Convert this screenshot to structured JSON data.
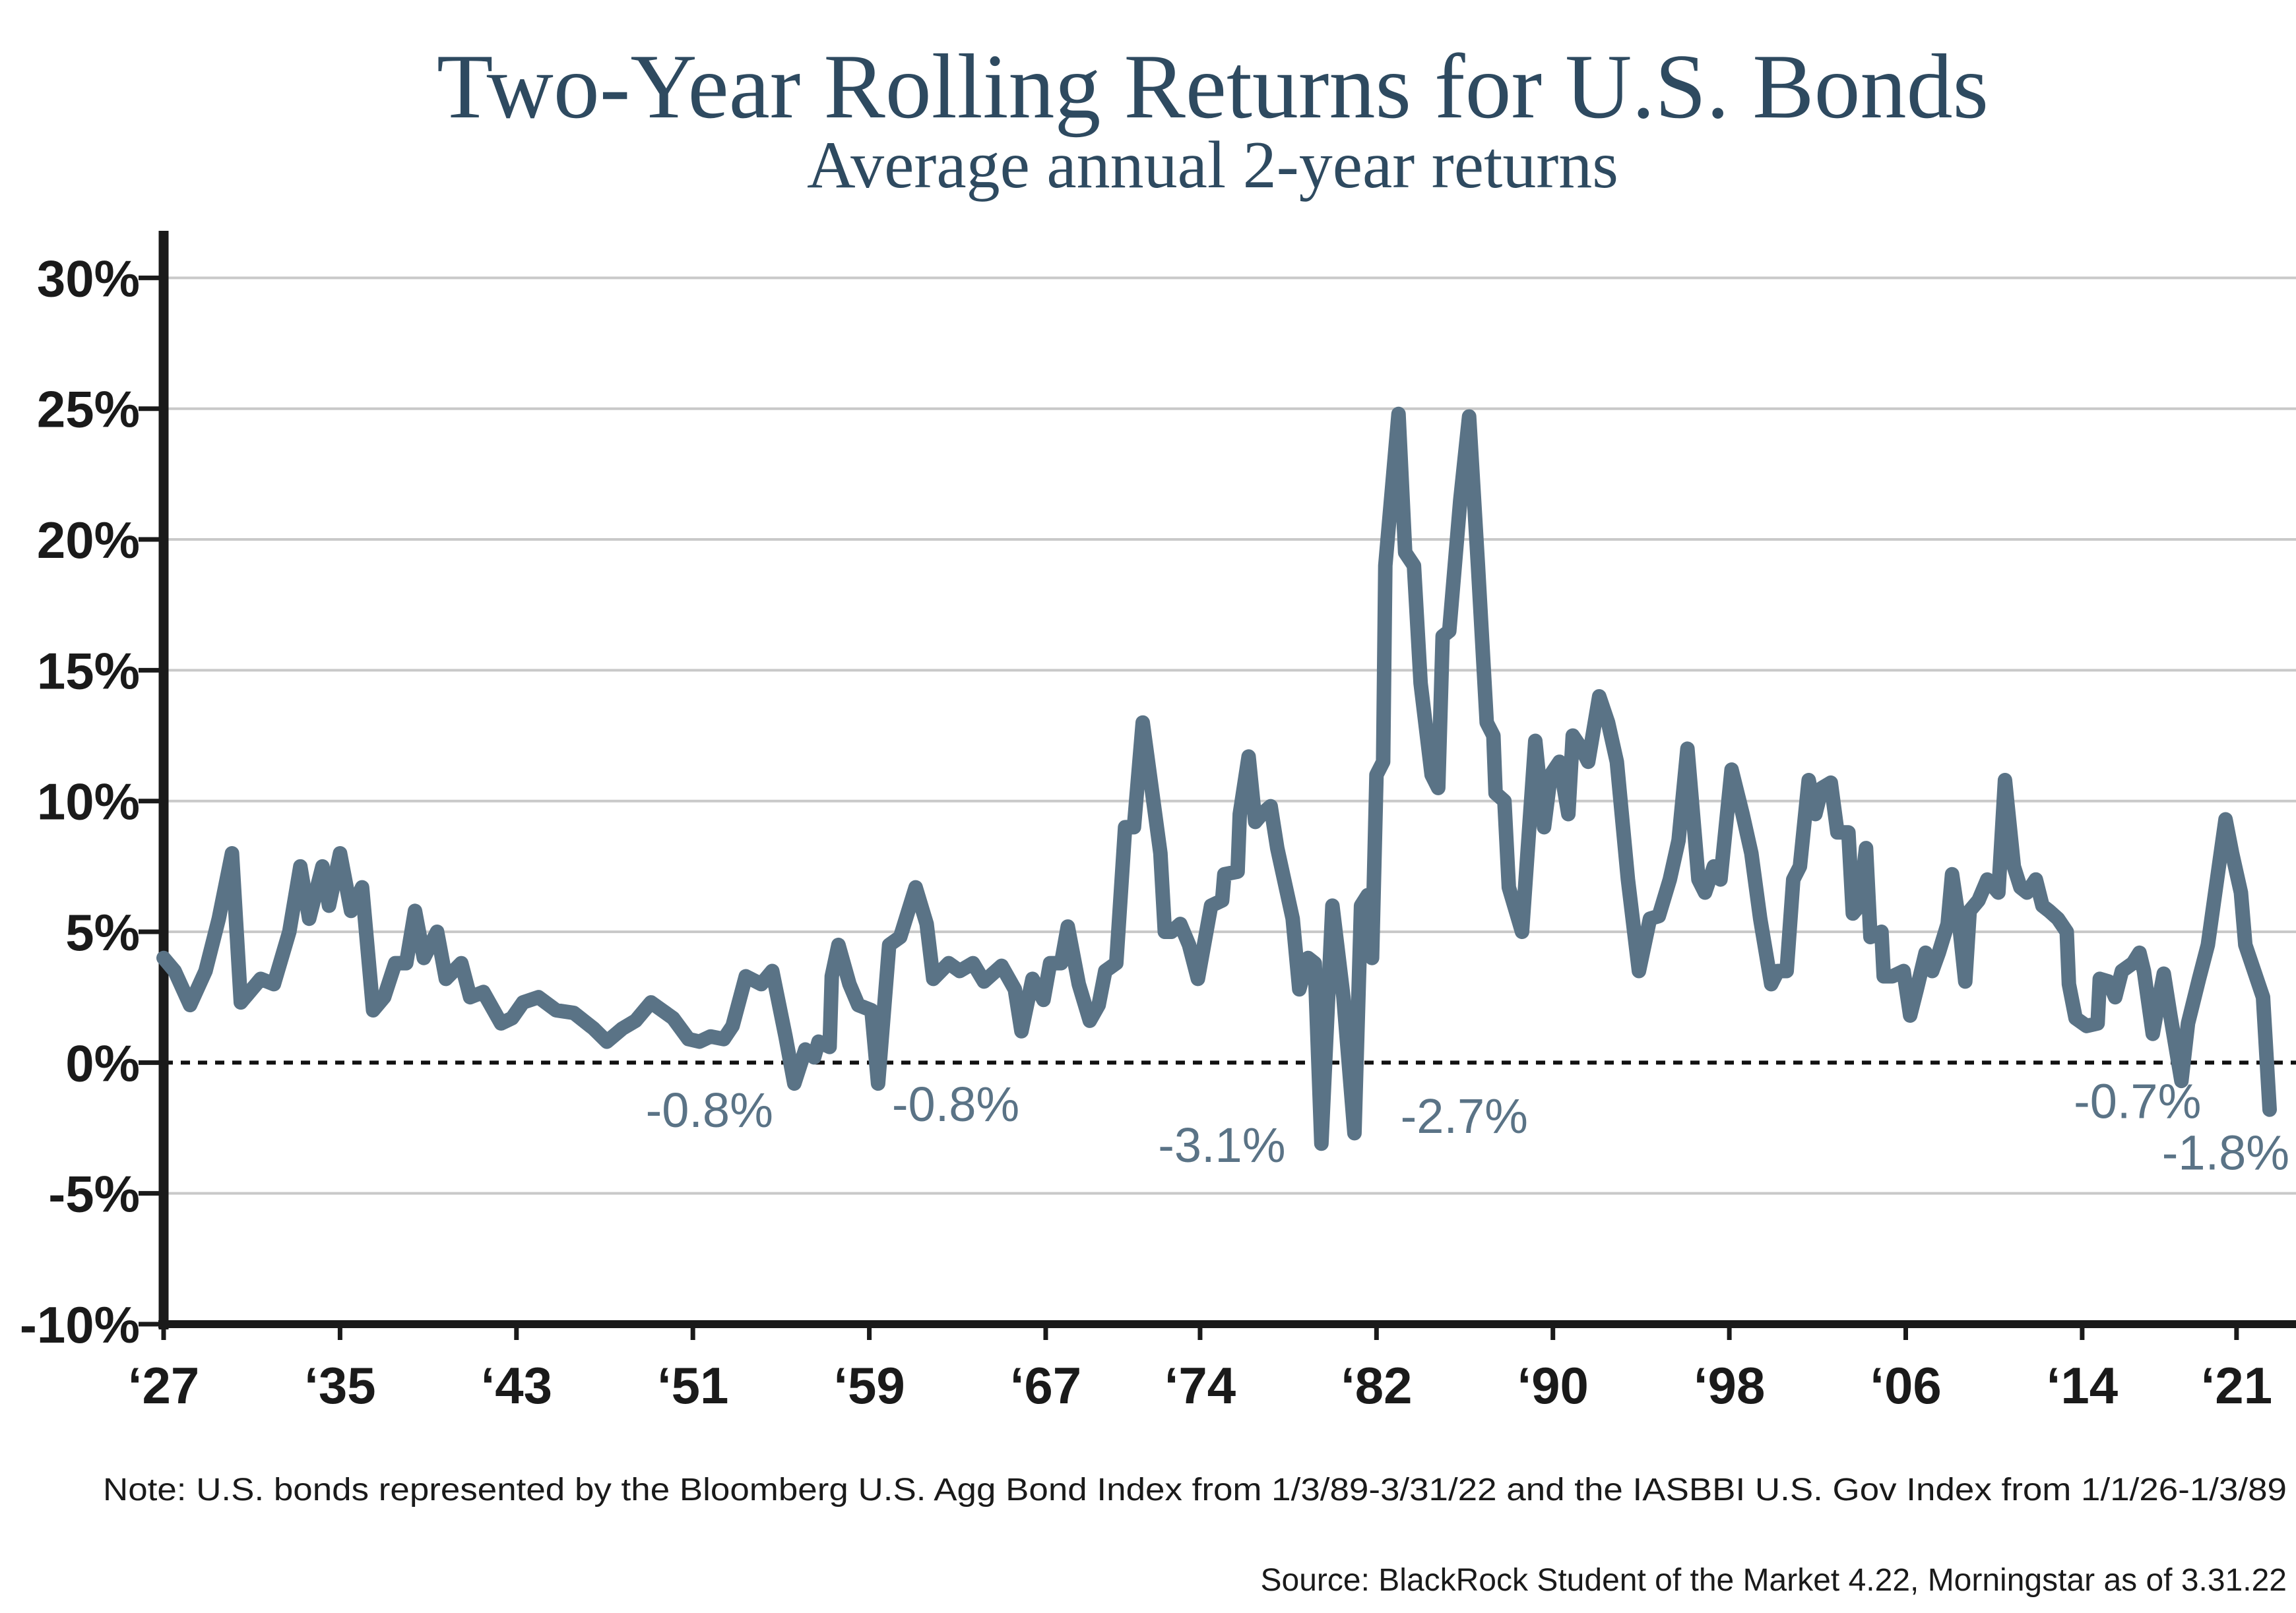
{
  "chart_data": {
    "type": "line",
    "title": "Two-Year Rolling Returns for U.S. Bonds",
    "subtitle": "Average annual 2-year returns",
    "note": "Note: U.S. bonds represented by the Bloomberg U.S. Agg Bond Index from 1/3/89-3/31/22 and the IASBBI U.S. Gov Index from 1/1/26-1/3/89",
    "source": "Source: BlackRock Student of the Market 4.22, Morningstar as of 3.31.22",
    "color": "#5a7386",
    "x": [
      1927.0,
      1927.5,
      1928.2,
      1928.9,
      1929.5,
      1930.1,
      1930.5,
      1931.4,
      1932.0,
      1932.7,
      1933.2,
      1933.6,
      1934.2,
      1934.5,
      1935.0,
      1935.5,
      1936.0,
      1936.5,
      1937.0,
      1937.5,
      1938.0,
      1938.4,
      1938.8,
      1939.4,
      1939.8,
      1940.5,
      1940.9,
      1941.5,
      1942.3,
      1942.8,
      1943.3,
      1944.0,
      1944.8,
      1945.6,
      1946.5,
      1947.1,
      1947.8,
      1948.4,
      1949.1,
      1950.1,
      1950.8,
      1951.3,
      1951.8,
      1952.4,
      1952.8,
      1953.4,
      1954.1,
      1954.6,
      1955.2,
      1955.6,
      1956.1,
      1956.5,
      1956.7,
      1957.2,
      1957.3,
      1957.6,
      1958.1,
      1958.5,
      1959.1,
      1959.4,
      1959.9,
      1960.4,
      1961.1,
      1961.6,
      1961.9,
      1962.6,
      1963.1,
      1963.7,
      1964.2,
      1965.0,
      1965.6,
      1965.9,
      1966.4,
      1966.9,
      1967.2,
      1967.7,
      1968.0,
      1968.5,
      1969.0,
      1969.4,
      1969.7,
      1970.2,
      1970.6,
      1971.0,
      1971.4,
      1971.8,
      1972.2,
      1972.4,
      1972.7,
      1973.1,
      1973.5,
      1973.9,
      1974.5,
      1975.0,
      1975.1,
      1975.7,
      1975.8,
      1976.2,
      1976.5,
      1976.8,
      1977.2,
      1977.5,
      1978.2,
      1978.5,
      1978.9,
      1979.2,
      1979.5,
      1980.0,
      1980.5,
      1981.0,
      1981.3,
      1981.6,
      1981.8,
      1982.0,
      1982.3,
      1982.4,
      1983.0,
      1983.3,
      1983.7,
      1984.0,
      1984.5,
      1984.8,
      1985.0,
      1985.3,
      1985.8,
      1986.2,
      1986.6,
      1987.0,
      1987.3,
      1987.4,
      1987.8,
      1988.0,
      1988.6,
      1989.2,
      1989.6,
      1989.9,
      1990.3,
      1990.7,
      1990.9,
      1991.3,
      1991.6,
      1992.1,
      1992.5,
      1992.9,
      1993.4,
      1993.9,
      1994.4,
      1994.8,
      1995.3,
      1995.7,
      1996.1,
      1996.6,
      1996.9,
      1997.3,
      1997.6,
      1998.1,
      1998.6,
      1999.0,
      1999.4,
      1999.9,
      2000.2,
      2000.6,
      2000.9,
      2001.2,
      2001.6,
      2001.9,
      2002.2,
      2002.6,
      2002.9,
      2003.4,
      2003.6,
      2003.9,
      2004.2,
      2004.4,
      2004.9,
      2005.0,
      2005.4,
      2005.9,
      2006.2,
      2006.5,
      2006.9,
      2007.2,
      2007.5,
      2007.9,
      2008.1,
      2008.4,
      2008.7,
      2008.9,
      2009.3,
      2009.7,
      2010.2,
      2010.5,
      2010.9,
      2011.2,
      2011.5,
      2011.9,
      2012.2,
      2012.5,
      2012.9,
      2013.3,
      2013.4,
      2013.7,
      2014.2,
      2014.7,
      2014.8,
      2015.2,
      2015.5,
      2015.8,
      2016.3,
      2016.6,
      2016.8,
      2017.2,
      2017.5,
      2017.7,
      2018.0,
      2018.5,
      2018.8,
      2019.3,
      2019.7,
      2020.2,
      2020.5,
      2020.8,
      2021.2,
      2021.4,
      2021.8,
      2022.2,
      2022.5
    ],
    "values": [
      4,
      3.5,
      2.2,
      3.5,
      5.5,
      8,
      2.3,
      3.2,
      3,
      5,
      7.5,
      5.5,
      7.5,
      6,
      8,
      5.8,
      6.7,
      2,
      2.5,
      3.8,
      3.8,
      5.8,
      4,
      5,
      3.2,
      3.8,
      2.5,
      2.7,
      1.5,
      1.7,
      2.3,
      2.5,
      2,
      1.9,
      1.3,
      0.8,
      1.3,
      1.6,
      2.3,
      1.7,
      0.9,
      0.8,
      1,
      0.9,
      1.4,
      3.3,
      3,
      3.5,
      1,
      -0.8,
      0.5,
      0.2,
      0.8,
      0.6,
      3.3,
      4.5,
      3,
      2.2,
      2,
      -0.8,
      4.5,
      4.8,
      6.7,
      5.3,
      3.2,
      3.8,
      3.5,
      3.8,
      3.1,
      3.7,
      2.8,
      1.2,
      3.2,
      2.4,
      3.8,
      3.8,
      5.2,
      3,
      1.6,
      2.2,
      3.5,
      3.8,
      9,
      9,
      13,
      10.5,
      8,
      5,
      5,
      5.3,
      4.5,
      3.2,
      6,
      6.2,
      7.2,
      7.3,
      9.5,
      11.7,
      9.2,
      9.5,
      9.8,
      8.2,
      5.5,
      2.8,
      4,
      3.8,
      -3.1,
      6,
      2.5,
      -2.7,
      6,
      6.4,
      4,
      11,
      11.5,
      19,
      24.8,
      19.5,
      19,
      14.5,
      11,
      10.5,
      16.3,
      16.5,
      21.5,
      24.7,
      19,
      13,
      12.5,
      10.3,
      10,
      6.7,
      5,
      12.3,
      9,
      11,
      11.5,
      9.5,
      12.5,
      12,
      11.5,
      14,
      13,
      11.5,
      7,
      3.5,
      5.5,
      5.6,
      7,
      8.5,
      12,
      7,
      6.5,
      7.5,
      7,
      11.2,
      9.5,
      8,
      5.5,
      3,
      3.5,
      3.5,
      7,
      7.5,
      10.8,
      9.5,
      10.5,
      10.7,
      8.8,
      8.8,
      5.7,
      6,
      8.2,
      4.8,
      5,
      3.3,
      3.3,
      3.5,
      1.8,
      2.8,
      4.2,
      3.5,
      4.2,
      5.3,
      7.2,
      5.5,
      3.1,
      5.8,
      6.2,
      7,
      6.5,
      10.8,
      7.5,
      6.7,
      6.5,
      7,
      6,
      5.8,
      5.5,
      5,
      3,
      1.7,
      1.4,
      1.5,
      3.2,
      3.1,
      2.5,
      3.5,
      3.8,
      4.2,
      3.5,
      1.1,
      2.5,
      3.4,
      1.8,
      -0.7,
      1.5,
      3.2,
      4.5,
      7.5,
      9.3,
      8,
      6.5,
      4.5,
      3.5,
      2.5,
      -1.8
    ],
    "xlim": [
      1927,
      2022.5
    ],
    "ylim": [
      -10,
      31.8
    ],
    "xticks": [
      {
        "value": 1927,
        "label": "‘27"
      },
      {
        "value": 1935,
        "label": "‘35"
      },
      {
        "value": 1943,
        "label": "‘43"
      },
      {
        "value": 1951,
        "label": "‘51"
      },
      {
        "value": 1959,
        "label": "‘59"
      },
      {
        "value": 1967,
        "label": "‘67"
      },
      {
        "value": 1974,
        "label": "‘74"
      },
      {
        "value": 1982,
        "label": "‘82"
      },
      {
        "value": 1990,
        "label": "‘90"
      },
      {
        "value": 1998,
        "label": "‘98"
      },
      {
        "value": 2006,
        "label": "‘06"
      },
      {
        "value": 2014,
        "label": "‘14"
      },
      {
        "value": 2021,
        "label": "‘21"
      }
    ],
    "yticks": [
      {
        "value": -10,
        "label": "-10%"
      },
      {
        "value": -5,
        "label": "-5%"
      },
      {
        "value": 0,
        "label": "0%"
      },
      {
        "value": 5,
        "label": "5%"
      },
      {
        "value": 10,
        "label": "10%"
      },
      {
        "value": 15,
        "label": "15%"
      },
      {
        "value": 20,
        "label": "20%"
      },
      {
        "value": 25,
        "label": "25%"
      },
      {
        "value": 30,
        "label": "30%"
      }
    ],
    "grid": true,
    "annotations": [
      {
        "x": 1955.6,
        "value": -0.8,
        "label": "-0.8%"
      },
      {
        "x": 1959.4,
        "value": -0.8,
        "label": "-0.8%"
      },
      {
        "x": 1979.5,
        "value": -3.1,
        "label": "-3.1%"
      },
      {
        "x": 1981.0,
        "value": -2.7,
        "label": "-2.7%"
      },
      {
        "x": 2018.5,
        "value": -0.7,
        "label": "-0.7%"
      },
      {
        "x": 2022.5,
        "value": -1.8,
        "label": "-1.8%"
      }
    ]
  }
}
